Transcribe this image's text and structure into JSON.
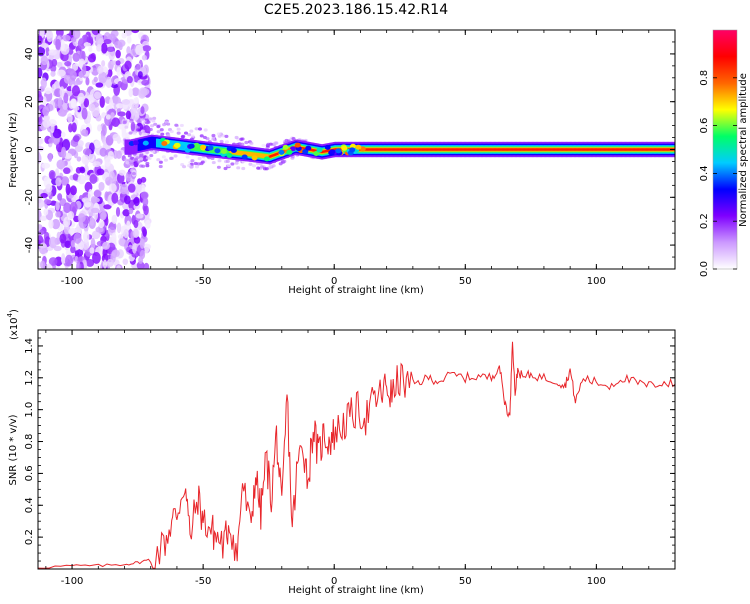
{
  "title": "C2E5.2023.186.15.42.R14",
  "chart_data": [
    {
      "type": "heatmap",
      "title": "C2E5.2023.186.15.42.R14",
      "xlabel": "Height of straight line (km)",
      "ylabel": "Frequency (Hz)",
      "xlim": [
        -113,
        130
      ],
      "ylim": [
        -50,
        50
      ],
      "xticks": [
        -100,
        -50,
        0,
        50,
        100
      ],
      "yticks": [
        -40,
        -20,
        0,
        20,
        40
      ],
      "colorbar": {
        "label": "Normalized spectral amplitude",
        "range": [
          0.0,
          1.0
        ],
        "ticks": [
          0.0,
          0.2,
          0.4,
          0.6,
          0.8
        ],
        "tick_labels": [
          "0.0",
          "0.2",
          "0.4",
          "0.6",
          "0.8"
        ],
        "colors": [
          "#ffffff",
          "#cc99ff",
          "#7f00ff",
          "#0000ff",
          "#00ccff",
          "#00ff66",
          "#ffff00",
          "#ff6600",
          "#ff0000",
          "#ff0066"
        ]
      },
      "features": {
        "noise_region_x": [
          -113,
          -75
        ],
        "ridge": {
          "x": [
            -78,
            -70,
            -62,
            -55,
            -48,
            -40,
            -32,
            -25,
            -20,
            -15,
            -10,
            -5,
            0,
            10,
            20,
            30,
            130
          ],
          "frequency": [
            1,
            3,
            2,
            1,
            0,
            -1,
            -2,
            -3,
            -1,
            1,
            0,
            -1,
            0,
            0,
            0,
            0,
            0
          ]
        }
      }
    },
    {
      "type": "line",
      "xlabel": "Height of straight line (km)",
      "ylabel": "SNR (10 * v/v)",
      "y_multiplier": "(x10",
      "y_multiplier_exp": "4",
      "xlim": [
        -113,
        130
      ],
      "ylim": [
        0,
        1.5
      ],
      "xticks": [
        -100,
        -50,
        0,
        50,
        100
      ],
      "yticks": [
        0.2,
        0.4,
        0.6,
        0.8,
        1.0,
        1.2,
        1.4
      ],
      "ytick_labels": [
        "0.2",
        "0.4",
        "0.6",
        "0.8",
        "1.0",
        "1.2",
        "1.4"
      ],
      "color": "#e8262b",
      "x": [
        -113,
        -100,
        -90,
        -80,
        -75,
        -70,
        -65,
        -62,
        -60,
        -57,
        -55,
        -52,
        -50,
        -47,
        -45,
        -42,
        -40,
        -37,
        -35,
        -32,
        -30,
        -28,
        -26,
        -24,
        -22,
        -20,
        -18,
        -16,
        -14,
        -12,
        -10,
        -8,
        -6,
        -4,
        -2,
        0,
        3,
        6,
        9,
        12,
        15,
        18,
        20,
        22,
        25,
        28,
        32,
        36,
        40,
        45,
        50,
        55,
        60,
        63,
        65,
        67,
        68,
        69,
        70,
        72,
        75,
        80,
        85,
        88,
        90,
        92,
        95,
        100,
        105,
        110,
        115,
        120,
        125,
        130
      ],
      "values": [
        0.01,
        0.02,
        0.02,
        0.03,
        0.04,
        0.06,
        0.15,
        0.3,
        0.35,
        0.55,
        0.2,
        0.45,
        0.3,
        0.25,
        0.2,
        0.15,
        0.3,
        0.08,
        0.55,
        0.25,
        0.6,
        0.35,
        0.7,
        0.45,
        0.85,
        0.35,
        1.1,
        0.25,
        0.65,
        0.8,
        0.55,
        0.9,
        0.7,
        0.85,
        0.8,
        0.85,
        0.9,
        0.95,
        1.0,
        0.95,
        1.05,
        1.1,
        1.15,
        1.08,
        1.2,
        1.15,
        1.17,
        1.2,
        1.18,
        1.22,
        1.2,
        1.21,
        1.2,
        1.28,
        1.05,
        0.95,
        1.45,
        1.1,
        1.25,
        1.2,
        1.22,
        1.2,
        1.18,
        1.15,
        1.25,
        1.05,
        1.2,
        1.17,
        1.15,
        1.2,
        1.17,
        1.15,
        1.17,
        1.16
      ]
    }
  ]
}
